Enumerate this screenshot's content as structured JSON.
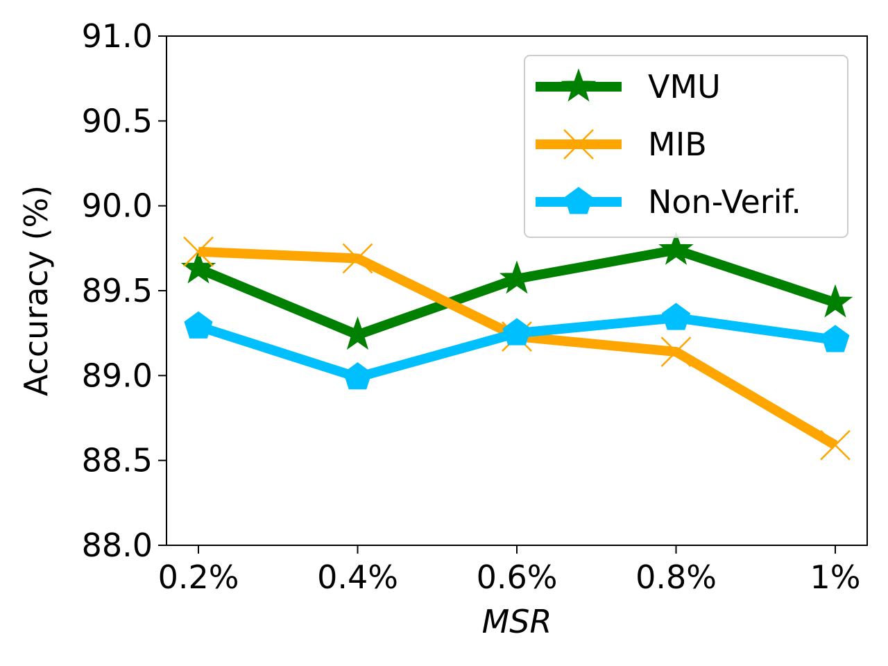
{
  "chart_data": {
    "type": "line",
    "title": "",
    "xlabel": "MSR",
    "ylabel": "Accuracy (%)",
    "categories": [
      "0.2%",
      "0.4%",
      "0.6%",
      "0.8%",
      "1%"
    ],
    "ylim": [
      88.0,
      91.0
    ],
    "yticks": [
      "88.0",
      "88.5",
      "89.0",
      "89.5",
      "90.0",
      "90.5",
      "91.0"
    ],
    "grid": false,
    "legend_position": "top-right",
    "series": [
      {
        "name": "VMU",
        "color": "#008000",
        "marker": "star",
        "values": [
          89.63,
          89.24,
          89.57,
          89.74,
          89.43
        ]
      },
      {
        "name": "MIB",
        "color": "#FFA500",
        "marker": "x",
        "values": [
          89.73,
          89.69,
          89.23,
          89.14,
          88.59
        ]
      },
      {
        "name": "Non-Verif.",
        "color": "#00BFFF",
        "marker": "pentagon",
        "values": [
          89.29,
          88.99,
          89.25,
          89.34,
          89.21
        ]
      }
    ]
  }
}
